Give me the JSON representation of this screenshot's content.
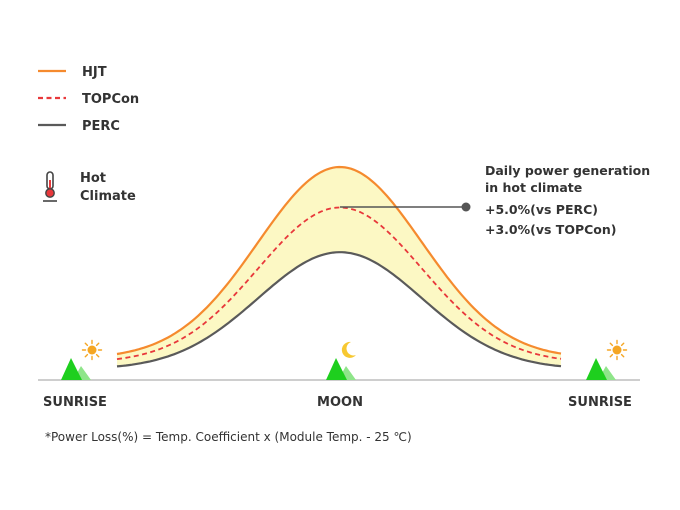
{
  "colors": {
    "hjt": "#f58a2e",
    "topcon": "#e8383b",
    "perc": "#5a5a5a",
    "band_fill": "#fcf8c4",
    "axis": "#bdbdbd",
    "mountain_dark": "#1ecf1e",
    "mountain_light": "#8fe58a",
    "sun": "#f5a623",
    "moon": "#f7c831",
    "thermometer": "#444444",
    "thermometer_bulb": "#e8383b",
    "annotation_line": "#555555"
  },
  "climate_label": [
    "Hot",
    "Climate"
  ],
  "climate_icon": "thermometer-icon",
  "annotation": {
    "title": [
      "Daily power generation",
      "in hot climate"
    ],
    "lines": [
      "+5.0%(vs PERC)",
      "+3.0%(vs TOPCon)"
    ]
  },
  "footnote": "*Power Loss(%) = Temp. Coefficient x (Module Temp. - 25 ℃)",
  "chart_data": {
    "type": "line",
    "categories": [
      "SUNRISE",
      "MOON",
      "SUNRISE"
    ],
    "category_icons": [
      "sun-icon",
      "moon-icon",
      "sun-icon"
    ],
    "legend_position": "top-left",
    "grid": false,
    "series": [
      {
        "name": "HJT",
        "style": "solid",
        "color": "#f58a2e",
        "peak": 1.0,
        "base": 0.1
      },
      {
        "name": "TOPCon",
        "style": "dashed",
        "color": "#e8383b",
        "peak": 0.81,
        "base": 0.08
      },
      {
        "name": "PERC",
        "style": "solid",
        "color": "#5a5a5a",
        "peak": 0.6,
        "base": 0.05
      }
    ]
  }
}
